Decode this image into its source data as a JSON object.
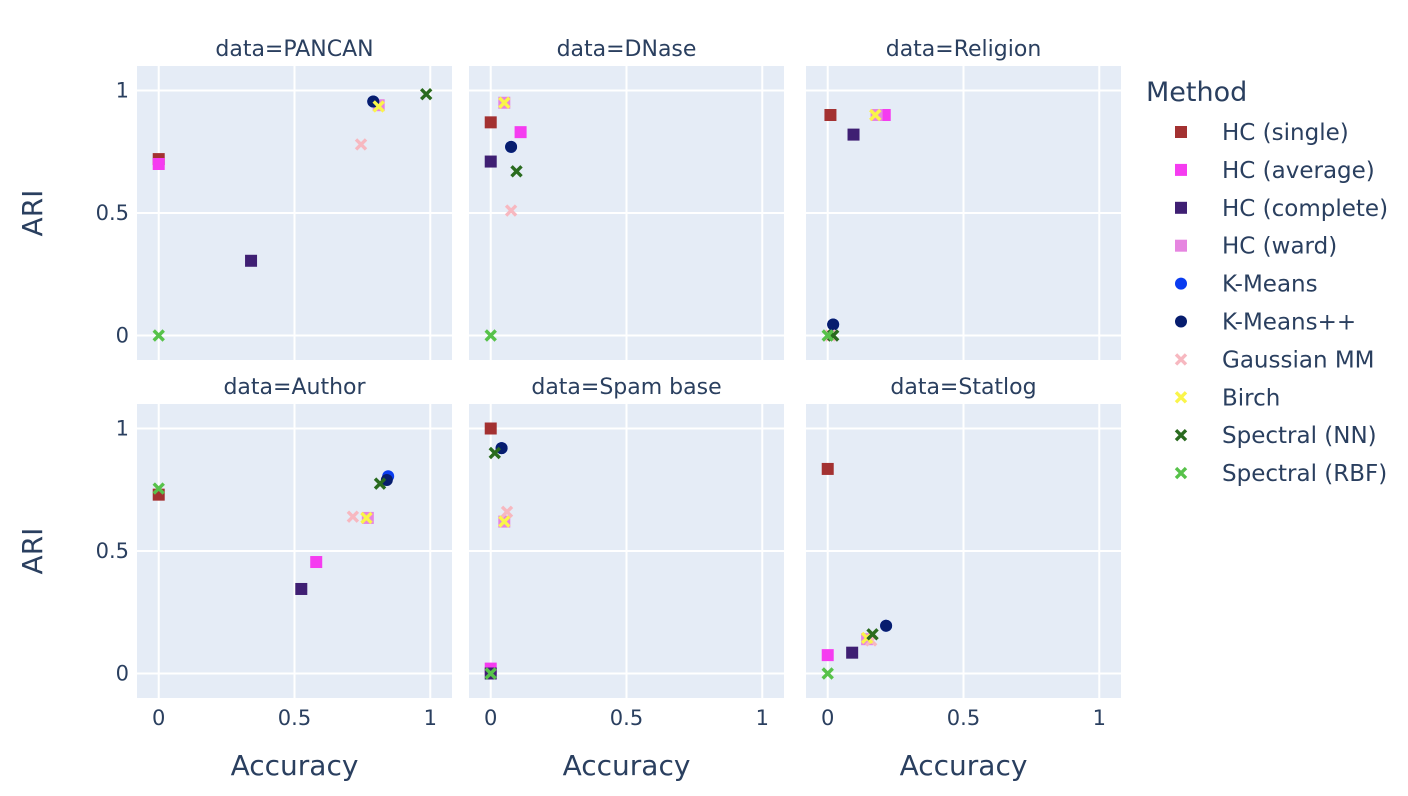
{
  "chart_data": {
    "type": "scatter",
    "facet_label": "data",
    "facet_titles": [
      "data=PANCAN",
      "data=DNase",
      "data=Religion",
      "data=Author",
      "data=Spam base",
      "data=Statlog"
    ],
    "xlabel": "Accuracy",
    "ylabel": "ARI",
    "xlim": [
      -0.08,
      1.08
    ],
    "ylim": [
      -0.1,
      1.1
    ],
    "xticks": [
      0,
      0.5,
      1
    ],
    "xtick_labels": [
      "0",
      "0.5",
      "1"
    ],
    "yticks": [
      0,
      0.5,
      1
    ],
    "ytick_labels": [
      "0",
      "0.5",
      "1"
    ],
    "grid": true,
    "legend_title": "Method",
    "legend_position": "right",
    "methods": [
      {
        "name": "HC (single)",
        "color": "#a33131",
        "symbol": "square"
      },
      {
        "name": "HC (average)",
        "color": "#f53cf0",
        "symbol": "square"
      },
      {
        "name": "HC (complete)",
        "color": "#3f1f73",
        "symbol": "square"
      },
      {
        "name": "HC (ward)",
        "color": "#e685e0",
        "symbol": "square"
      },
      {
        "name": "K-Means",
        "color": "#0a3cf0",
        "symbol": "circle"
      },
      {
        "name": "K-Means++",
        "color": "#071d6e",
        "symbol": "circle"
      },
      {
        "name": "Gaussian MM",
        "color": "#f7b8c0",
        "symbol": "x"
      },
      {
        "name": "Birch",
        "color": "#faf54a",
        "symbol": "x"
      },
      {
        "name": "Spectral (NN)",
        "color": "#2a6b1f",
        "symbol": "x"
      },
      {
        "name": "Spectral (RBF)",
        "color": "#57c24a",
        "symbol": "x"
      }
    ],
    "facets": [
      {
        "name": "PANCAN",
        "points": [
          {
            "method": "HC (single)",
            "x": 0.0,
            "y": 0.72
          },
          {
            "method": "HC (average)",
            "x": 0.0,
            "y": 0.7
          },
          {
            "method": "HC (complete)",
            "x": 0.34,
            "y": 0.305
          },
          {
            "method": "HC (ward)",
            "x": 0.81,
            "y": 0.94
          },
          {
            "method": "K-Means",
            "x": 0.79,
            "y": 0.955
          },
          {
            "method": "K-Means++",
            "x": 0.79,
            "y": 0.955
          },
          {
            "method": "Gaussian MM",
            "x": 0.745,
            "y": 0.78
          },
          {
            "method": "Birch",
            "x": 0.81,
            "y": 0.935
          },
          {
            "method": "Spectral (NN)",
            "x": 0.985,
            "y": 0.985
          },
          {
            "method": "Spectral (RBF)",
            "x": 0.0,
            "y": 0.0
          }
        ]
      },
      {
        "name": "DNase",
        "points": [
          {
            "method": "HC (single)",
            "x": 0.0,
            "y": 0.87
          },
          {
            "method": "HC (average)",
            "x": 0.11,
            "y": 0.83
          },
          {
            "method": "HC (complete)",
            "x": 0.0,
            "y": 0.71
          },
          {
            "method": "HC (ward)",
            "x": 0.05,
            "y": 0.95
          },
          {
            "method": "K-Means",
            "x": 0.075,
            "y": 0.77
          },
          {
            "method": "K-Means++",
            "x": 0.075,
            "y": 0.77
          },
          {
            "method": "Gaussian MM",
            "x": 0.075,
            "y": 0.51
          },
          {
            "method": "Birch",
            "x": 0.05,
            "y": 0.95
          },
          {
            "method": "Spectral (NN)",
            "x": 0.095,
            "y": 0.67
          },
          {
            "method": "Spectral (RBF)",
            "x": 0.0,
            "y": 0.0
          }
        ]
      },
      {
        "name": "Religion",
        "points": [
          {
            "method": "HC (single)",
            "x": 0.01,
            "y": 0.9
          },
          {
            "method": "HC (average)",
            "x": 0.21,
            "y": 0.9
          },
          {
            "method": "HC (complete)",
            "x": 0.095,
            "y": 0.82
          },
          {
            "method": "HC (ward)",
            "x": 0.18,
            "y": 0.9
          },
          {
            "method": "K-Means",
            "x": 0.02,
            "y": 0.045
          },
          {
            "method": "K-Means++",
            "x": 0.02,
            "y": 0.045
          },
          {
            "method": "Gaussian MM",
            "x": 0.01,
            "y": 0.0
          },
          {
            "method": "Birch",
            "x": 0.175,
            "y": 0.9
          },
          {
            "method": "Spectral (NN)",
            "x": 0.02,
            "y": 0.0
          },
          {
            "method": "Spectral (RBF)",
            "x": 0.0,
            "y": 0.0
          }
        ]
      },
      {
        "name": "Author",
        "points": [
          {
            "method": "HC (single)",
            "x": 0.0,
            "y": 0.73
          },
          {
            "method": "HC (average)",
            "x": 0.58,
            "y": 0.455
          },
          {
            "method": "HC (complete)",
            "x": 0.525,
            "y": 0.345
          },
          {
            "method": "HC (ward)",
            "x": 0.77,
            "y": 0.635
          },
          {
            "method": "K-Means",
            "x": 0.845,
            "y": 0.805
          },
          {
            "method": "K-Means++",
            "x": 0.84,
            "y": 0.79
          },
          {
            "method": "Gaussian MM",
            "x": 0.715,
            "y": 0.64
          },
          {
            "method": "Birch",
            "x": 0.765,
            "y": 0.635
          },
          {
            "method": "Spectral (NN)",
            "x": 0.815,
            "y": 0.775
          },
          {
            "method": "Spectral (RBF)",
            "x": 0.0,
            "y": 0.755
          }
        ]
      },
      {
        "name": "Spam base",
        "points": [
          {
            "method": "HC (single)",
            "x": 0.0,
            "y": 1.0
          },
          {
            "method": "HC (average)",
            "x": 0.0,
            "y": 0.02
          },
          {
            "method": "HC (complete)",
            "x": 0.0,
            "y": 0.0
          },
          {
            "method": "HC (ward)",
            "x": 0.05,
            "y": 0.62
          },
          {
            "method": "K-Means",
            "x": 0.04,
            "y": 0.92
          },
          {
            "method": "K-Means++",
            "x": 0.04,
            "y": 0.92
          },
          {
            "method": "Gaussian MM",
            "x": 0.06,
            "y": 0.66
          },
          {
            "method": "Birch",
            "x": 0.05,
            "y": 0.62
          },
          {
            "method": "Spectral (NN)",
            "x": 0.015,
            "y": 0.9
          },
          {
            "method": "Spectral (RBF)",
            "x": 0.0,
            "y": 0.0
          }
        ]
      },
      {
        "name": "Statlog",
        "points": [
          {
            "method": "HC (single)",
            "x": 0.0,
            "y": 0.835
          },
          {
            "method": "HC (average)",
            "x": 0.0,
            "y": 0.075
          },
          {
            "method": "HC (complete)",
            "x": 0.09,
            "y": 0.085
          },
          {
            "method": "HC (ward)",
            "x": 0.145,
            "y": 0.14
          },
          {
            "method": "K-Means",
            "x": 0.215,
            "y": 0.195
          },
          {
            "method": "K-Means++",
            "x": 0.215,
            "y": 0.195
          },
          {
            "method": "Gaussian MM",
            "x": 0.16,
            "y": 0.135
          },
          {
            "method": "Birch",
            "x": 0.145,
            "y": 0.145
          },
          {
            "method": "Spectral (NN)",
            "x": 0.165,
            "y": 0.16
          },
          {
            "method": "Spectral (RBF)",
            "x": 0.0,
            "y": 0.0
          }
        ]
      }
    ]
  }
}
